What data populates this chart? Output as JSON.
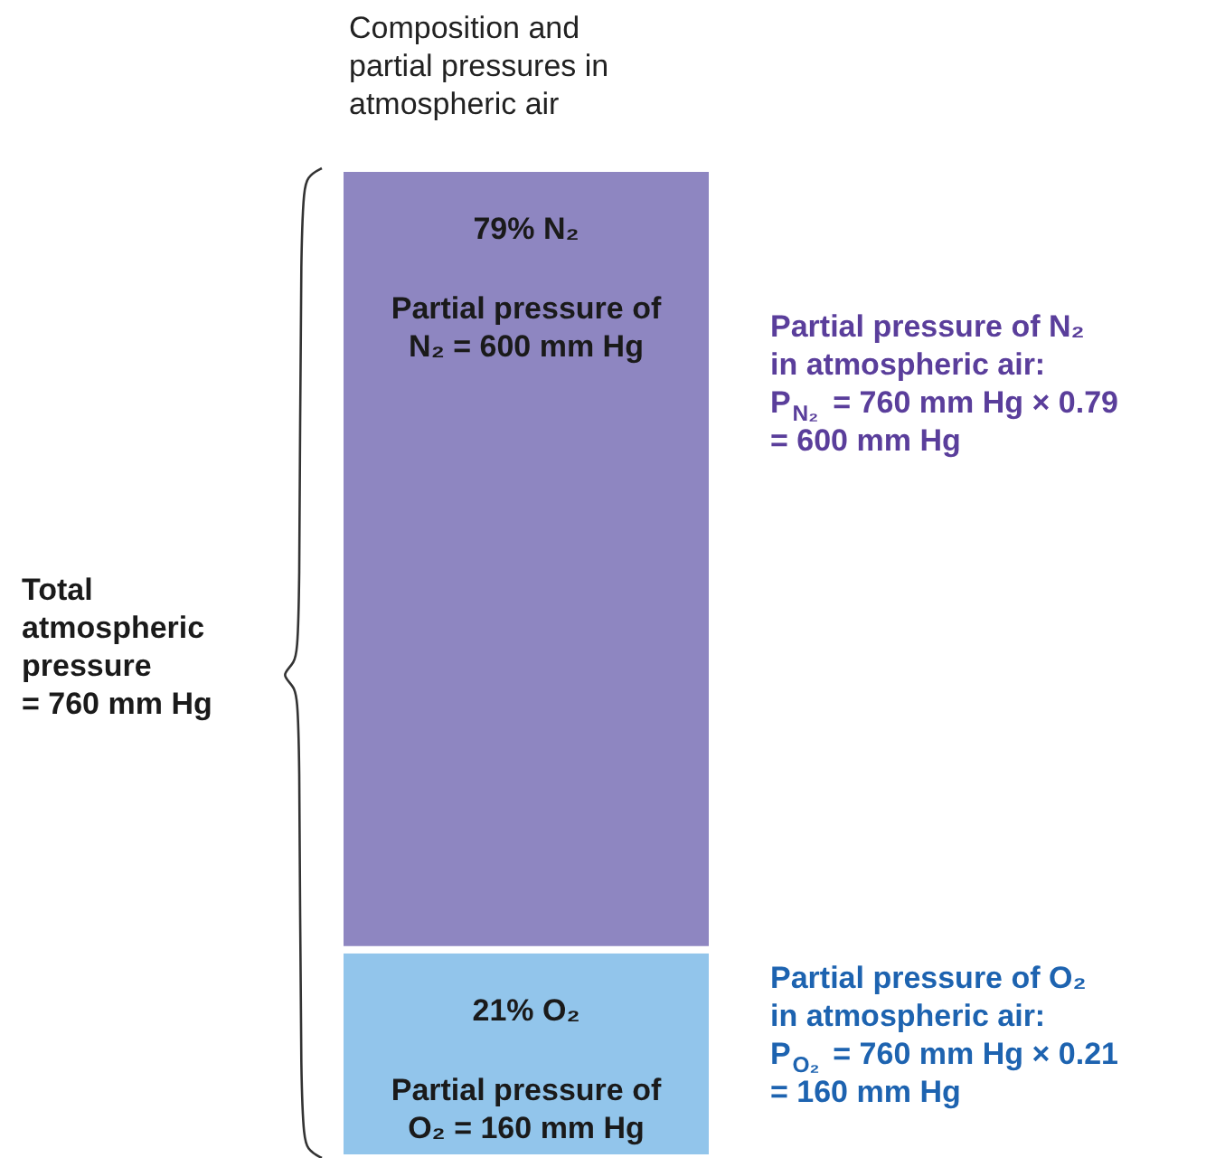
{
  "chart_data": {
    "type": "bar",
    "stacked": true,
    "categories": [
      null
    ],
    "title": "Composition and\npartial pressures in\natmospheric air",
    "legend": false,
    "series": [
      {
        "name": "21% O₂",
        "color": "#92c5eb",
        "values": [
          160
        ],
        "value_labels": [
          "Partial pressure of\nO₂ = 160 mm Hg"
        ]
      },
      {
        "name": "79% N₂",
        "color": "#8e86c1",
        "values": [
          600
        ],
        "value_labels": [
          "Partial pressure of\nN₂ = 600 mm Hg"
        ]
      }
    ],
    "annotations": [
      "Total\natmospheric\npressure\n= 760 mm Hg",
      "Partial pressure of N₂\nin atmospheric air:\nP$_{N₂}$ = 760 mm Hg × 0.79\n= 600 mm Hg",
      "Partial pressure of O₂\nin atmospheric air:\nP$_{O₂}$ = 760 mm Hg × 0.21\n= 160 mm Hg"
    ]
  }
}
